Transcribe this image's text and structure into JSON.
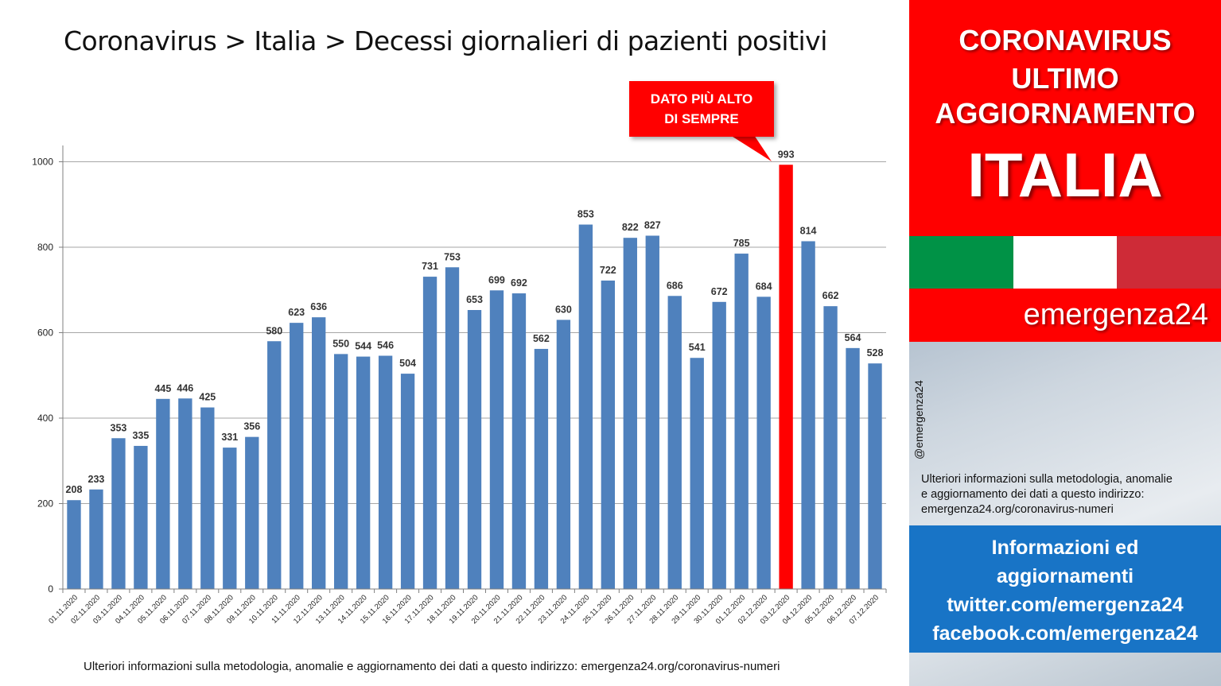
{
  "title": "Coronavirus > Italia > Decessi giornalieri di pazienti positivi",
  "callout": {
    "line1": "DATO PIÙ ALTO",
    "line2": "DI SEMPRE"
  },
  "footnote": "Ulteriori informazioni sulla metodologia, anomalie e aggiornamento dei dati a questo indirizzo: emergenza24.org/coronavirus-numeri",
  "panel": {
    "headline1": "CORONAVIRUS",
    "headline2": "ULTIMO",
    "headline3": "AGGIORNAMENTO",
    "headline4": "ITALIA",
    "brand": "emergenza24",
    "handle": "@emergenza24",
    "info_line1": "Ulteriori informazioni sulla metodologia, anomalie",
    "info_line2": "e aggiornamento dei dati a questo indirizzo:",
    "info_line3": "emergenza24.org/coronavirus-numeri",
    "social_line1": "Informazioni ed",
    "social_line2": "aggiornamenti",
    "social_line3": "twitter.com/emergenza24",
    "social_line4": "facebook.com/emergenza24"
  },
  "colors": {
    "bar": "#4f81bd",
    "highlight": "#ff0000",
    "red": "#ff0000",
    "flag_green": "#009246",
    "flag_white": "#ffffff",
    "flag_red": "#ce2b37",
    "blue_box": "#1874c6"
  },
  "chart_data": {
    "type": "bar",
    "categories": [
      "01.11.2020",
      "02.11.2020",
      "03.11.2020",
      "04.11.2020",
      "05.11.2020",
      "06.11.2020",
      "07.11.2020",
      "08.11.2020",
      "09.11.2020",
      "10.11.2020",
      "11.11.2020",
      "12.11.2020",
      "13.11.2020",
      "14.11.2020",
      "15.11.2020",
      "16.11.2020",
      "17.11.2020",
      "18.11.2020",
      "19.11.2020",
      "20.11.2020",
      "21.11.2020",
      "22.11.2020",
      "23.11.2020",
      "24.11.2020",
      "25.11.2020",
      "26.11.2020",
      "27.11.2020",
      "28.11.2020",
      "29.11.2020",
      "30.11.2020",
      "01.12.2020",
      "02.12.2020",
      "03.12.2020",
      "04.12.2020",
      "05.12.2020",
      "06.12.2020",
      "07.12.2020"
    ],
    "values": [
      208,
      233,
      353,
      335,
      445,
      446,
      425,
      331,
      356,
      580,
      623,
      636,
      550,
      544,
      546,
      504,
      731,
      753,
      653,
      699,
      692,
      562,
      630,
      853,
      722,
      822,
      827,
      686,
      541,
      672,
      785,
      684,
      993,
      814,
      662,
      564,
      528
    ],
    "highlight_category": "03.12.2020",
    "ylim": [
      0,
      1000
    ],
    "yticks": [
      0,
      200,
      400,
      600,
      800,
      1000
    ],
    "grid": true,
    "title": "",
    "xlabel": "",
    "ylabel": ""
  }
}
